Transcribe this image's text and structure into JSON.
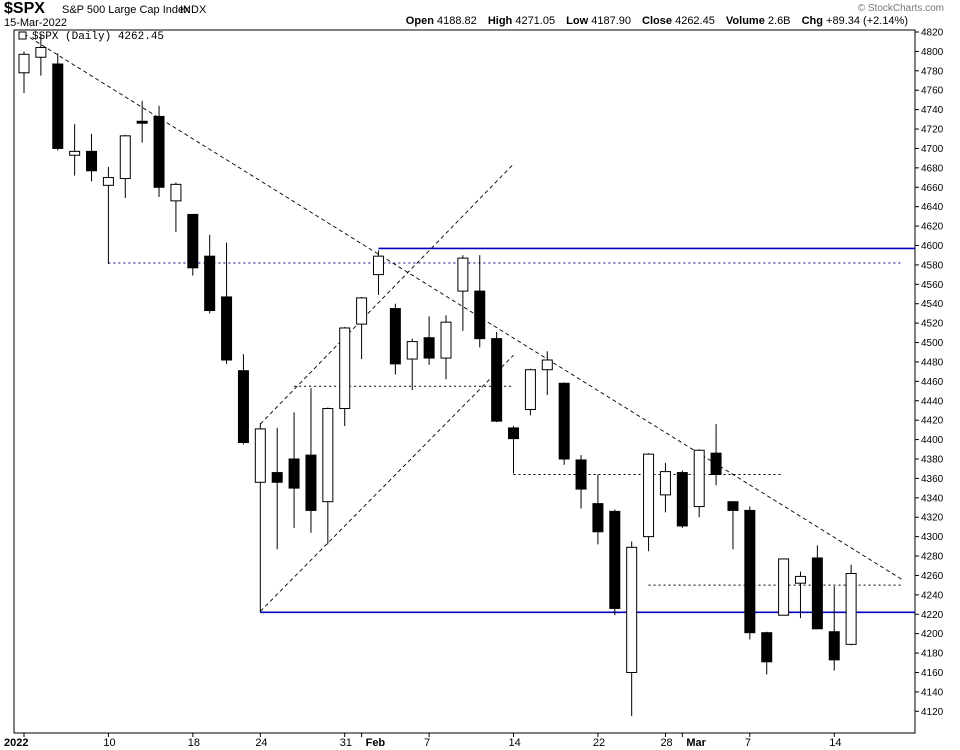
{
  "header": {
    "symbol": "$SPX",
    "description": "S&P 500 Large Cap Index",
    "exchange": "INDX",
    "date": "15-Mar-2022",
    "legend": "$SPX (Daily) 4262.45",
    "watermark": "© StockCharts.com",
    "open_label": "Open",
    "open": "4188.82",
    "high_label": "High",
    "high": "4271.05",
    "low_label": "Low",
    "low": "4187.90",
    "close_label": "Close",
    "close": "4262.45",
    "volume_label": "Volume",
    "volume": "2.6B",
    "chg_label": "Chg",
    "chg": "+89.34 (+2.14%)"
  },
  "chart_data": {
    "type": "candlestick",
    "title": "$SPX (Daily) 4262.45",
    "ylim": [
      4110,
      4820
    ],
    "yticks": [
      4120,
      4140,
      4160,
      4180,
      4200,
      4220,
      4240,
      4260,
      4280,
      4300,
      4320,
      4340,
      4360,
      4380,
      4400,
      4420,
      4440,
      4460,
      4480,
      4500,
      4520,
      4540,
      4560,
      4580,
      4600,
      4620,
      4640,
      4660,
      4680,
      4700,
      4720,
      4740,
      4760,
      4780,
      4800,
      4820
    ],
    "xticks": [
      {
        "label": "2022",
        "index": 0
      },
      {
        "label": "10",
        "index": 5
      },
      {
        "label": "18",
        "index": 10
      },
      {
        "label": "24",
        "index": 14
      },
      {
        "label": "31",
        "index": 19
      },
      {
        "label": "Feb",
        "index": 20
      },
      {
        "label": "7",
        "index": 24
      },
      {
        "label": "14",
        "index": 29
      },
      {
        "label": "22",
        "index": 34
      },
      {
        "label": "28",
        "index": 38
      },
      {
        "label": "Mar",
        "index": 39
      },
      {
        "label": "7",
        "index": 43
      },
      {
        "label": "14",
        "index": 48
      }
    ],
    "candles": [
      {
        "o": 4778,
        "h": 4800,
        "l": 4757,
        "c": 4797
      },
      {
        "o": 4794,
        "h": 4818,
        "l": 4775,
        "c": 4804
      },
      {
        "o": 4787,
        "h": 4798,
        "l": 4698,
        "c": 4700
      },
      {
        "o": 4693,
        "h": 4725,
        "l": 4672,
        "c": 4697
      },
      {
        "o": 4697,
        "h": 4715,
        "l": 4666,
        "c": 4677
      },
      {
        "o": 4662,
        "h": 4681,
        "l": 4581,
        "c": 4670
      },
      {
        "o": 4669,
        "h": 4714,
        "l": 4649,
        "c": 4713
      },
      {
        "o": 4728,
        "h": 4749,
        "l": 4706,
        "c": 4726
      },
      {
        "o": 4733,
        "h": 4744,
        "l": 4650,
        "c": 4660
      },
      {
        "o": 4646,
        "h": 4665,
        "l": 4614,
        "c": 4663
      },
      {
        "o": 4632,
        "h": 4632,
        "l": 4569,
        "c": 4577
      },
      {
        "o": 4589,
        "h": 4611,
        "l": 4530,
        "c": 4533
      },
      {
        "o": 4547,
        "h": 4603,
        "l": 4478,
        "c": 4482
      },
      {
        "o": 4471,
        "h": 4488,
        "l": 4395,
        "c": 4397
      },
      {
        "o": 4356,
        "h": 4417,
        "l": 4222,
        "c": 4411
      },
      {
        "o": 4366,
        "h": 4412,
        "l": 4287,
        "c": 4356
      },
      {
        "o": 4380,
        "h": 4428,
        "l": 4309,
        "c": 4350
      },
      {
        "o": 4384,
        "h": 4453,
        "l": 4304,
        "c": 4327
      },
      {
        "o": 4336,
        "h": 4433,
        "l": 4292,
        "c": 4432
      },
      {
        "o": 4432,
        "h": 4516,
        "l": 4414,
        "c": 4515
      },
      {
        "o": 4519,
        "h": 4547,
        "l": 4483,
        "c": 4546
      },
      {
        "o": 4570,
        "h": 4595,
        "l": 4549,
        "c": 4589
      },
      {
        "o": 4535,
        "h": 4540,
        "l": 4467,
        "c": 4478
      },
      {
        "o": 4483,
        "h": 4504,
        "l": 4451,
        "c": 4501
      },
      {
        "o": 4505,
        "h": 4527,
        "l": 4477,
        "c": 4484
      },
      {
        "o": 4484,
        "h": 4528,
        "l": 4462,
        "c": 4521
      },
      {
        "o": 4553,
        "h": 4590,
        "l": 4512,
        "c": 4587
      },
      {
        "o": 4553,
        "h": 4590,
        "l": 4495,
        "c": 4504
      },
      {
        "o": 4504,
        "h": 4511,
        "l": 4418,
        "c": 4419
      },
      {
        "o": 4412,
        "h": 4414,
        "l": 4365,
        "c": 4401
      },
      {
        "o": 4431,
        "h": 4473,
        "l": 4425,
        "c": 4472
      },
      {
        "o": 4472,
        "h": 4491,
        "l": 4446,
        "c": 4482
      },
      {
        "o": 4458,
        "h": 4459,
        "l": 4374,
        "c": 4380
      },
      {
        "o": 4379,
        "h": 4384,
        "l": 4329,
        "c": 4349
      },
      {
        "o": 4334,
        "h": 4364,
        "l": 4292,
        "c": 4305
      },
      {
        "o": 4326,
        "h": 4328,
        "l": 4219,
        "c": 4226
      },
      {
        "o": 4160,
        "h": 4295,
        "l": 4115,
        "c": 4289
      },
      {
        "o": 4300,
        "h": 4386,
        "l": 4285,
        "c": 4385
      },
      {
        "o": 4343,
        "h": 4376,
        "l": 4325,
        "c": 4367
      },
      {
        "o": 4366,
        "h": 4368,
        "l": 4309,
        "c": 4311
      },
      {
        "o": 4331,
        "h": 4390,
        "l": 4320,
        "c": 4389
      },
      {
        "o": 4386,
        "h": 4416,
        "l": 4353,
        "c": 4364
      },
      {
        "o": 4336,
        "h": 4336,
        "l": 4287,
        "c": 4327
      },
      {
        "o": 4327,
        "h": 4331,
        "l": 4194,
        "c": 4201
      },
      {
        "o": 4201,
        "h": 4202,
        "l": 4158,
        "c": 4171
      },
      {
        "o": 4219,
        "h": 4274,
        "l": 4220,
        "c": 4277
      },
      {
        "o": 4252,
        "h": 4264,
        "l": 4216,
        "c": 4259
      },
      {
        "o": 4278,
        "h": 4291,
        "l": 4206,
        "c": 4205
      },
      {
        "o": 4202,
        "h": 4249,
        "l": 4162,
        "c": 4173
      },
      {
        "o": 4189,
        "h": 4271,
        "l": 4188,
        "c": 4262
      }
    ],
    "trendlines": [
      {
        "from": [
          0,
          4818
        ],
        "to": [
          52,
          4256
        ],
        "style": "dashed"
      },
      {
        "from": [
          14,
          4223
        ],
        "to": [
          29,
          4487
        ],
        "style": "dashed"
      },
      {
        "from": [
          14,
          4416
        ],
        "to": [
          29,
          4684
        ],
        "style": "dashed"
      }
    ],
    "horizontal_levels": [
      {
        "value": 4597,
        "from_index": 21,
        "color": "#0000c0",
        "style": "solid"
      },
      {
        "value": 4222,
        "from_index": 14,
        "color": "#0000c0",
        "style": "solid"
      },
      {
        "value": 4582,
        "from_index": 5,
        "to_index": 52,
        "color": "#000080",
        "style": "dotted"
      },
      {
        "value": 4455,
        "from_index": 16,
        "to_index": 29,
        "color": "#000000",
        "style": "dotted"
      },
      {
        "value": 4364,
        "from_index": 29,
        "to_index": 45,
        "color": "#000000",
        "style": "dotted"
      },
      {
        "value": 4250,
        "from_index": 37,
        "to_index": 52,
        "color": "#000000",
        "style": "dotted"
      }
    ],
    "colors": {
      "up": "#ffffff",
      "down": "#000000",
      "level": "#0000c0"
    },
    "grid": false
  }
}
